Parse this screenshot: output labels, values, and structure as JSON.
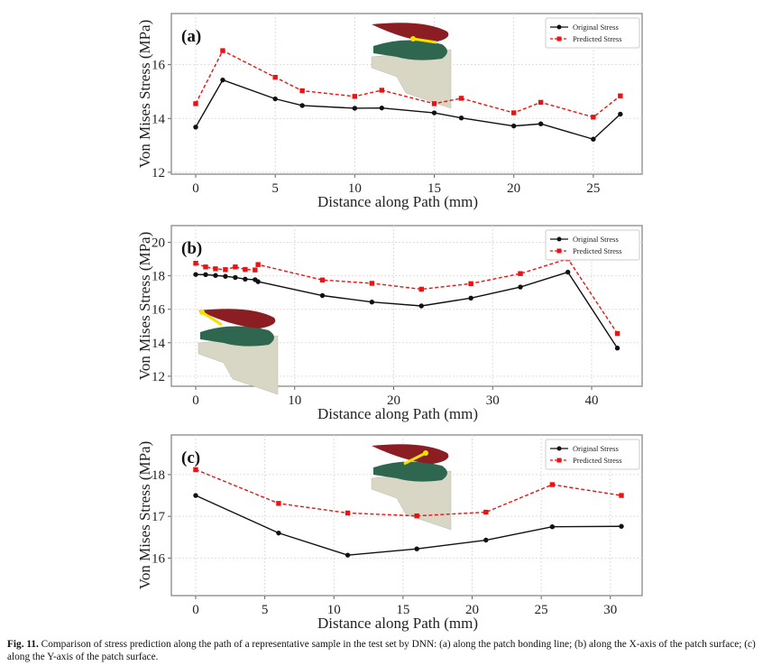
{
  "chart_data": [
    {
      "type": "line",
      "panel": "(a)",
      "xlabel": "Distance along Path (mm)",
      "ylabel": "Von Mises Stress (MPa)",
      "xlim": [
        -1.53,
        28.07
      ],
      "ylim": [
        11.93,
        17.9
      ],
      "xticks": [
        0,
        5,
        10,
        15,
        20,
        25
      ],
      "yticks": [
        12,
        14,
        16
      ],
      "grid": true,
      "legend": "top-right",
      "inset": "top-center",
      "series": [
        {
          "name": "Original Stress",
          "color": "#111111",
          "style": "solid",
          "marker": "circle",
          "x": [
            0,
            1.7,
            5,
            6.7,
            10,
            11.7,
            15,
            16.7,
            20,
            21.7,
            25,
            26.7
          ],
          "y": [
            13.68,
            15.43,
            14.73,
            14.48,
            14.38,
            14.39,
            14.21,
            14.02,
            13.72,
            13.8,
            13.23,
            14.16
          ]
        },
        {
          "name": "Predicted Stress",
          "color": "#ee1111",
          "style": "dashed",
          "marker": "square",
          "x": [
            0,
            1.7,
            5,
            6.7,
            10,
            11.7,
            15,
            16.7,
            20,
            21.7,
            25,
            26.7
          ],
          "y": [
            14.55,
            16.52,
            15.53,
            15.03,
            14.82,
            15.05,
            14.55,
            14.75,
            14.21,
            14.6,
            14.05,
            14.84
          ]
        }
      ]
    },
    {
      "type": "line",
      "panel": "(b)",
      "xlabel": "Distance along Path (mm)",
      "ylabel": "Von Mises Stress (MPa)",
      "xlim": [
        -2.46,
        45.1
      ],
      "ylim": [
        11.4,
        21.0
      ],
      "xticks": [
        0,
        10,
        20,
        30,
        40
      ],
      "yticks": [
        12,
        14,
        16,
        18,
        20
      ],
      "grid": true,
      "legend": "top-right",
      "inset": "bottom-left",
      "series": [
        {
          "name": "Original Stress",
          "color": "#111111",
          "style": "solid",
          "marker": "circle",
          "x": [
            0,
            1,
            2,
            3,
            4,
            5,
            6,
            6.3,
            12.8,
            17.8,
            22.8,
            27.8,
            32.8,
            37.6,
            42.6
          ],
          "y": [
            18.08,
            18.07,
            18.02,
            17.97,
            17.9,
            17.8,
            17.77,
            17.65,
            16.82,
            16.43,
            16.2,
            16.67,
            17.33,
            18.22,
            13.68
          ]
        },
        {
          "name": "Predicted Stress",
          "color": "#ee1111",
          "style": "dashed",
          "marker": "square",
          "x": [
            0,
            1,
            2,
            3,
            4,
            5,
            6,
            6.3,
            12.8,
            17.8,
            22.8,
            27.8,
            32.8,
            37.6,
            42.6
          ],
          "y": [
            18.75,
            18.53,
            18.42,
            18.37,
            18.53,
            18.38,
            18.35,
            18.67,
            17.75,
            17.55,
            17.2,
            17.53,
            18.13,
            19.02,
            14.55
          ]
        }
      ]
    },
    {
      "type": "line",
      "panel": "(c)",
      "xlabel": "Distance along Path (mm)",
      "ylabel": "Von Mises Stress (MPa)",
      "xlim": [
        -1.76,
        32.3
      ],
      "ylim": [
        15.1,
        18.95
      ],
      "xticks": [
        0,
        5,
        10,
        15,
        20,
        25,
        30
      ],
      "yticks": [
        16,
        17,
        18
      ],
      "grid": true,
      "legend": "top-right",
      "inset": "top-center",
      "series": [
        {
          "name": "Original Stress",
          "color": "#111111",
          "style": "solid",
          "marker": "circle",
          "x": [
            0,
            6,
            11,
            16,
            21,
            25.8,
            30.8
          ],
          "y": [
            17.5,
            16.6,
            16.07,
            16.22,
            16.43,
            16.75,
            16.76
          ]
        },
        {
          "name": "Predicted Stress",
          "color": "#ee1111",
          "style": "dashed",
          "marker": "square",
          "x": [
            0,
            6,
            11,
            16,
            21,
            25.8,
            30.8
          ],
          "y": [
            18.12,
            17.31,
            17.08,
            17.01,
            17.1,
            17.76,
            17.5
          ]
        }
      ]
    }
  ],
  "caption": {
    "label": "Fig. 11.",
    "text": "Comparison of stress prediction along the path of a representative sample in the test set by DNN: (a) along the patch bonding line; (b) along the X-axis of the patch surface; (c) along the Y-axis of the patch surface."
  }
}
